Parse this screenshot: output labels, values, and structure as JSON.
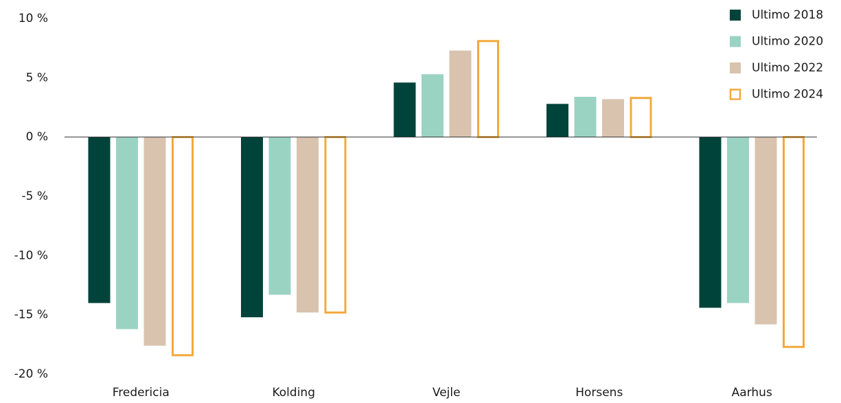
{
  "chart_data": {
    "type": "bar",
    "categories": [
      "Fredericia",
      "Kolding",
      "Vejle",
      "Horsens",
      "Aarhus"
    ],
    "series": [
      {
        "name": "Ultimo 2018",
        "color": "#00433a",
        "values": [
          -14.0,
          -15.2,
          4.6,
          2.8,
          -14.4
        ]
      },
      {
        "name": "Ultimo 2020",
        "color": "#9bd3c3",
        "values": [
          -16.2,
          -13.3,
          5.3,
          3.4,
          -14.0
        ]
      },
      {
        "name": "Ultimo 2022",
        "color": "#d9c3ae",
        "values": [
          -17.6,
          -14.8,
          7.3,
          3.2,
          -15.8
        ]
      },
      {
        "name": "Ultimo 2024",
        "color": "#f2a93b",
        "outline": true,
        "values": [
          -18.4,
          -14.8,
          8.1,
          3.3,
          -17.7
        ]
      }
    ],
    "ylim": [
      -20,
      10
    ],
    "yticks": [
      {
        "value": 10,
        "label": "10 %"
      },
      {
        "value": 5,
        "label": "5 %"
      },
      {
        "value": 0,
        "label": "0 %"
      },
      {
        "value": -5,
        "label": "-5 %"
      },
      {
        "value": -10,
        "label": "-10 %"
      },
      {
        "value": -15,
        "label": "-15 %"
      },
      {
        "value": -20,
        "label": "-20 %"
      }
    ],
    "legend": "top-right"
  }
}
